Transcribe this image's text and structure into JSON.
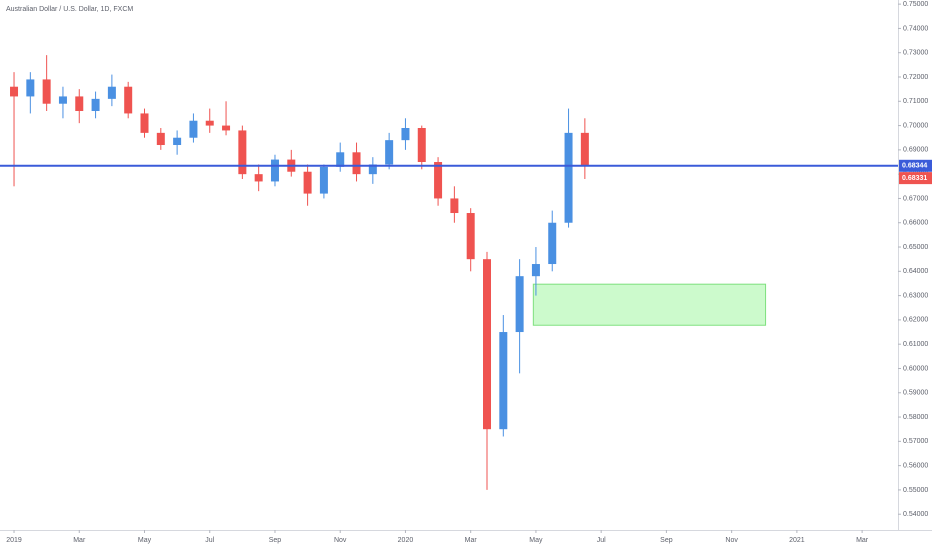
{
  "chart_data": {
    "type": "candlestick",
    "title": "Australian Dollar / U.S. Dollar, 1D, FXCM",
    "up_color": "#4a90e2",
    "down_color": "#ef5350",
    "candles": {
      "x": [
        0,
        0.5,
        1,
        1.5,
        2,
        2.5,
        3,
        3.5,
        4,
        4.5,
        5,
        5.5,
        6,
        6.5,
        7,
        7.5,
        8,
        8.5,
        9,
        9.5,
        10,
        10.5,
        11,
        11.5,
        12,
        12.5,
        13,
        13.5,
        14,
        14.5,
        15,
        15.5,
        16,
        16.5,
        17,
        17.5
      ],
      "open": [
        0.716,
        0.712,
        0.719,
        0.709,
        0.712,
        0.706,
        0.711,
        0.716,
        0.705,
        0.697,
        0.692,
        0.695,
        0.702,
        0.7,
        0.698,
        0.68,
        0.677,
        0.686,
        0.681,
        0.672,
        0.683,
        0.689,
        0.68,
        0.684,
        0.694,
        0.699,
        0.685,
        0.67,
        0.664,
        0.645,
        0.575,
        0.615,
        0.638,
        0.643,
        0.66,
        0.697
      ],
      "high": [
        0.722,
        0.722,
        0.729,
        0.716,
        0.715,
        0.714,
        0.721,
        0.718,
        0.707,
        0.699,
        0.698,
        0.705,
        0.707,
        0.71,
        0.7,
        0.684,
        0.688,
        0.69,
        0.684,
        0.684,
        0.693,
        0.693,
        0.687,
        0.697,
        0.703,
        0.7,
        0.687,
        0.675,
        0.666,
        0.648,
        0.622,
        0.645,
        0.65,
        0.665,
        0.707,
        0.703
      ],
      "low": [
        0.675,
        0.705,
        0.706,
        0.703,
        0.701,
        0.703,
        0.708,
        0.703,
        0.695,
        0.69,
        0.688,
        0.693,
        0.697,
        0.696,
        0.678,
        0.673,
        0.675,
        0.679,
        0.667,
        0.67,
        0.681,
        0.677,
        0.676,
        0.682,
        0.69,
        0.682,
        0.667,
        0.66,
        0.64,
        0.55,
        0.572,
        0.598,
        0.63,
        0.64,
        0.658,
        0.678
      ],
      "close": [
        0.712,
        0.719,
        0.709,
        0.712,
        0.706,
        0.711,
        0.716,
        0.705,
        0.697,
        0.692,
        0.695,
        0.702,
        0.7,
        0.698,
        0.68,
        0.677,
        0.686,
        0.681,
        0.672,
        0.683,
        0.689,
        0.68,
        0.684,
        0.694,
        0.699,
        0.685,
        0.67,
        0.664,
        0.645,
        0.575,
        0.615,
        0.638,
        0.643,
        0.66,
        0.697,
        0.68331
      ]
    },
    "last_close_label": "0.68331",
    "price_line": {
      "value": 0.68344,
      "label": "0.68344",
      "color": "#3a5bd9"
    },
    "zone": {
      "x": [
        15.92,
        23.04
      ],
      "y": [
        0.6178,
        0.6347
      ],
      "color": "#ccfacc",
      "border": "#7ee07e"
    },
    "xlim": [
      -0.43,
      27.1
    ],
    "xticks": [
      {
        "value": 0,
        "label": "2019"
      },
      {
        "value": 2,
        "label": "Mar"
      },
      {
        "value": 4,
        "label": "May"
      },
      {
        "value": 6,
        "label": "Jul"
      },
      {
        "value": 8,
        "label": "Sep"
      },
      {
        "value": 10,
        "label": "Nov"
      },
      {
        "value": 12,
        "label": "2020"
      },
      {
        "value": 14,
        "label": "Mar"
      },
      {
        "value": 16,
        "label": "May"
      },
      {
        "value": 18,
        "label": "Jul"
      },
      {
        "value": 20,
        "label": "Sep"
      },
      {
        "value": 22,
        "label": "Nov"
      },
      {
        "value": 24,
        "label": "2021"
      },
      {
        "value": 26,
        "label": "Mar"
      }
    ],
    "ylim": [
      0.5335,
      0.7517
    ],
    "yticks": [
      {
        "value": 0.75,
        "label": "0.75000"
      },
      {
        "value": 0.74,
        "label": "0.74000"
      },
      {
        "value": 0.73,
        "label": "0.73000"
      },
      {
        "value": 0.72,
        "label": "0.72000"
      },
      {
        "value": 0.71,
        "label": "0.71000"
      },
      {
        "value": 0.7,
        "label": "0.70000"
      },
      {
        "value": 0.69,
        "label": "0.69000"
      },
      {
        "value": 0.68,
        "label": "0.68000"
      },
      {
        "value": 0.67,
        "label": "0.67000"
      },
      {
        "value": 0.66,
        "label": "0.66000"
      },
      {
        "value": 0.65,
        "label": "0.65000"
      },
      {
        "value": 0.64,
        "label": "0.64000"
      },
      {
        "value": 0.63,
        "label": "0.63000"
      },
      {
        "value": 0.62,
        "label": "0.62000"
      },
      {
        "value": 0.61,
        "label": "0.61000"
      },
      {
        "value": 0.6,
        "label": "0.60000"
      },
      {
        "value": 0.59,
        "label": "0.59000"
      },
      {
        "value": 0.58,
        "label": "0.58000"
      },
      {
        "value": 0.57,
        "label": "0.57000"
      },
      {
        "value": 0.56,
        "label": "0.56000"
      },
      {
        "value": 0.55,
        "label": "0.55000"
      },
      {
        "value": 0.54,
        "label": "0.54000"
      }
    ]
  }
}
